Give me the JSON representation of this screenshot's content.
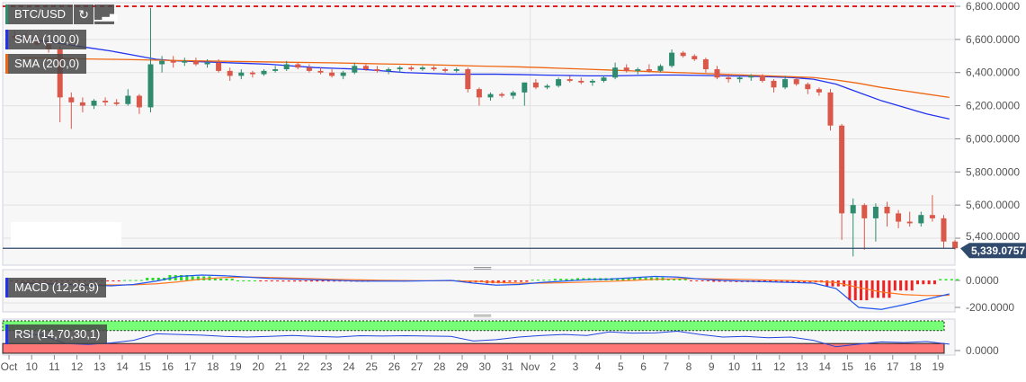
{
  "symbol_label": "BTC/USD",
  "toolbar": {
    "refresh_icon": "refresh-icon",
    "bars_icon": "bar-chart-icon"
  },
  "indicators": {
    "sma100": "SMA (100,0)",
    "sma200": "SMA (200,0)",
    "macd": "MACD (12,26,9)",
    "rsi": "RSI (14,70,30,1)"
  },
  "colors": {
    "up": "#2e8b6e",
    "down": "#d9584a",
    "sma100": "#2233ee",
    "sma200": "#ee6611",
    "price_line": "#2f4a6d",
    "max_line": "#e02020",
    "macd_line": "#2255ee",
    "signal_line": "#ff7722",
    "hist_up": "#22dd22",
    "hist_down": "#ee2222",
    "rsi_line": "#2244dd",
    "rsi_overbought": "#77ff77",
    "rsi_oversold": "#ff7777"
  },
  "chart_data": [
    {
      "type": "candlestick",
      "title": "BTC/USD",
      "candle_period": "12h (estimated)",
      "x_tick_labels": [
        "Oct",
        "10",
        "11",
        "12",
        "13",
        "14",
        "15",
        "16",
        "17",
        "18",
        "19",
        "20",
        "21",
        "22",
        "23",
        "24",
        "25",
        "26",
        "27",
        "28",
        "29",
        "30",
        "31",
        "Nov",
        "2",
        "3",
        "4",
        "5",
        "6",
        "7",
        "8",
        "9",
        "10",
        "11",
        "12",
        "13",
        "14",
        "15",
        "16",
        "17",
        "18",
        "19"
      ],
      "y_tick_labels": [
        "6,800.0000",
        "6,600.0000",
        "6,400.0000",
        "6,200.0000",
        "6,000.0000",
        "5,800.0000",
        "5,600.0000",
        "5,400.0000"
      ],
      "ylim": [
        5290,
        6810
      ],
      "max_line": 6800,
      "current_price": 5339.0757,
      "current_price_label": "5,339.0757",
      "ohlc": [
        [
          6620,
          6650,
          6600,
          6610
        ],
        [
          6610,
          6640,
          6580,
          6600
        ],
        [
          6600,
          6620,
          6560,
          6570
        ],
        [
          6570,
          6590,
          6520,
          6540
        ],
        [
          6540,
          6560,
          6100,
          6250
        ],
        [
          6250,
          6280,
          6060,
          6220
        ],
        [
          6220,
          6250,
          6160,
          6200
        ],
        [
          6200,
          6240,
          6180,
          6230
        ],
        [
          6230,
          6250,
          6200,
          6220
        ],
        [
          6220,
          6240,
          6200,
          6210
        ],
        [
          6210,
          6300,
          6200,
          6260
        ],
        [
          6260,
          6270,
          6150,
          6190
        ],
        [
          6190,
          6790,
          6160,
          6450
        ],
        [
          6450,
          6500,
          6400,
          6470
        ],
        [
          6470,
          6500,
          6430,
          6460
        ],
        [
          6460,
          6490,
          6440,
          6470
        ],
        [
          6470,
          6490,
          6440,
          6450
        ],
        [
          6450,
          6480,
          6430,
          6460
        ],
        [
          6460,
          6480,
          6400,
          6410
        ],
        [
          6410,
          6430,
          6350,
          6380
        ],
        [
          6380,
          6420,
          6360,
          6400
        ],
        [
          6400,
          6410,
          6370,
          6390
        ],
        [
          6390,
          6420,
          6380,
          6410
        ],
        [
          6410,
          6440,
          6400,
          6420
        ],
        [
          6420,
          6470,
          6410,
          6450
        ],
        [
          6450,
          6460,
          6420,
          6430
        ],
        [
          6430,
          6450,
          6400,
          6410
        ],
        [
          6410,
          6430,
          6390,
          6400
        ],
        [
          6400,
          6420,
          6370,
          6380
        ],
        [
          6380,
          6410,
          6360,
          6400
        ],
        [
          6400,
          6460,
          6390,
          6440
        ],
        [
          6440,
          6450,
          6410,
          6420
        ],
        [
          6420,
          6440,
          6400,
          6410
        ],
        [
          6410,
          6430,
          6390,
          6420
        ],
        [
          6420,
          6440,
          6400,
          6430
        ],
        [
          6430,
          6440,
          6410,
          6420
        ],
        [
          6420,
          6440,
          6410,
          6430
        ],
        [
          6430,
          6440,
          6410,
          6420
        ],
        [
          6420,
          6430,
          6400,
          6410
        ],
        [
          6410,
          6430,
          6400,
          6420
        ],
        [
          6420,
          6430,
          6280,
          6300
        ],
        [
          6300,
          6310,
          6200,
          6250
        ],
        [
          6250,
          6280,
          6230,
          6270
        ],
        [
          6270,
          6280,
          6250,
          6260
        ],
        [
          6260,
          6290,
          6240,
          6280
        ],
        [
          6280,
          6340,
          6200,
          6340
        ],
        [
          6340,
          6360,
          6300,
          6310
        ],
        [
          6310,
          6330,
          6300,
          6320
        ],
        [
          6320,
          6370,
          6310,
          6360
        ],
        [
          6360,
          6380,
          6340,
          6350
        ],
        [
          6350,
          6370,
          6330,
          6340
        ],
        [
          6340,
          6360,
          6320,
          6350
        ],
        [
          6350,
          6380,
          6340,
          6370
        ],
        [
          6370,
          6460,
          6360,
          6430
        ],
        [
          6430,
          6450,
          6400,
          6410
        ],
        [
          6410,
          6430,
          6390,
          6420
        ],
        [
          6420,
          6450,
          6400,
          6410
        ],
        [
          6410,
          6450,
          6400,
          6440
        ],
        [
          6440,
          6540,
          6430,
          6520
        ],
        [
          6520,
          6530,
          6490,
          6500
        ],
        [
          6500,
          6510,
          6470,
          6480
        ],
        [
          6480,
          6490,
          6400,
          6420
        ],
        [
          6420,
          6440,
          6360,
          6370
        ],
        [
          6370,
          6390,
          6340,
          6360
        ],
        [
          6360,
          6380,
          6340,
          6370
        ],
        [
          6370,
          6390,
          6350,
          6380
        ],
        [
          6380,
          6390,
          6340,
          6350
        ],
        [
          6350,
          6360,
          6280,
          6310
        ],
        [
          6310,
          6380,
          6300,
          6360
        ],
        [
          6360,
          6370,
          6320,
          6330
        ],
        [
          6330,
          6340,
          6270,
          6300
        ],
        [
          6300,
          6310,
          6260,
          6280
        ],
        [
          6280,
          6300,
          6050,
          6080
        ],
        [
          6080,
          6090,
          5390,
          5550
        ],
        [
          5550,
          5640,
          5290,
          5600
        ],
        [
          5600,
          5610,
          5330,
          5520
        ],
        [
          5520,
          5610,
          5380,
          5590
        ],
        [
          5590,
          5620,
          5470,
          5550
        ],
        [
          5550,
          5570,
          5460,
          5500
        ],
        [
          5500,
          5560,
          5470,
          5490
        ],
        [
          5490,
          5560,
          5470,
          5540
        ],
        [
          5540,
          5660,
          5500,
          5520
        ],
        [
          5520,
          5540,
          5340,
          5380
        ],
        [
          5380,
          5390,
          5330,
          5339
        ]
      ],
      "series": [
        {
          "name": "SMA (100,0)",
          "values": [
            6610,
            6590,
            6570,
            6550,
            6530,
            6505,
            6480,
            6470,
            6465,
            6460,
            6455,
            6450,
            6440,
            6430,
            6425,
            6420,
            6410,
            6400,
            6395,
            6390,
            6390,
            6390,
            6388,
            6385,
            6383,
            6380,
            6380,
            6382,
            6385,
            6385,
            6383,
            6380,
            6378,
            6375,
            6370,
            6360,
            6330,
            6280,
            6230,
            6190,
            6150,
            6120
          ]
        },
        {
          "name": "SMA (200,0)",
          "values": [
            6490,
            6488,
            6485,
            6482,
            6480,
            6478,
            6475,
            6472,
            6470,
            6468,
            6466,
            6464,
            6462,
            6460,
            6458,
            6455,
            6452,
            6450,
            6447,
            6444,
            6440,
            6437,
            6434,
            6430,
            6425,
            6420,
            6415,
            6410,
            6405,
            6400,
            6395,
            6390,
            6385,
            6380,
            6375,
            6370,
            6355,
            6335,
            6310,
            6290,
            6270,
            6250
          ]
        }
      ]
    },
    {
      "type": "line",
      "title": "MACD (12,26,9)",
      "y_tick_labels": [
        "0.0000",
        "-200.0000"
      ],
      "ylim": [
        -233,
        80
      ],
      "macd": [
        -20,
        -25,
        -30,
        -35,
        -40,
        -30,
        -5,
        30,
        40,
        35,
        25,
        15,
        10,
        5,
        0,
        -5,
        -5,
        -5,
        -3,
        0,
        -20,
        -35,
        -30,
        -15,
        -5,
        5,
        10,
        20,
        30,
        25,
        10,
        0,
        -5,
        -10,
        -15,
        -20,
        -60,
        -200,
        -215,
        -180,
        -140,
        -100
      ],
      "signal": [
        -15,
        -20,
        -25,
        -30,
        -33,
        -33,
        -25,
        -10,
        10,
        22,
        25,
        22,
        18,
        13,
        8,
        4,
        1,
        -1,
        -2,
        -2,
        -6,
        -14,
        -20,
        -20,
        -17,
        -12,
        -7,
        0,
        8,
        13,
        13,
        10,
        7,
        3,
        -1,
        -5,
        -16,
        -53,
        -86,
        -105,
        -112,
        -110
      ]
    },
    {
      "type": "line",
      "title": "RSI (14,70,30,1)",
      "y_tick_labels": [
        "0.0000"
      ],
      "ylim": [
        0,
        100
      ],
      "bands": {
        "overbought": 70,
        "oversold": 30
      },
      "values": [
        62,
        55,
        30,
        27,
        32,
        40,
        60,
        58,
        56,
        52,
        50,
        52,
        55,
        52,
        50,
        54,
        53,
        54,
        53,
        52,
        38,
        42,
        50,
        55,
        58,
        55,
        66,
        62,
        63,
        68,
        58,
        50,
        52,
        48,
        50,
        40,
        20,
        28,
        35,
        33,
        36,
        28
      ]
    }
  ]
}
